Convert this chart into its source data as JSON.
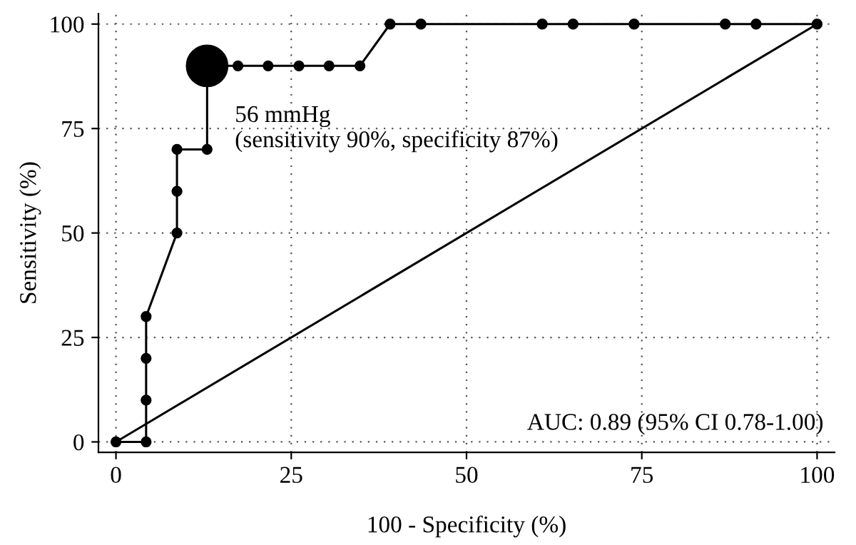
{
  "chart_data": {
    "type": "line",
    "xlabel": "100 - Specificity (%)",
    "ylabel": "Sensitivity (%)",
    "xlim": [
      0,
      100
    ],
    "ylim": [
      0,
      100
    ],
    "xticks": [
      0,
      25,
      50,
      75,
      100
    ],
    "yticks": [
      0,
      25,
      50,
      75,
      100
    ],
    "grid": true,
    "line_style": "solid",
    "marker": "circle",
    "series": [
      {
        "color": "#000000",
        "x": [
          0,
          4.3,
          4.3,
          4.3,
          4.3,
          8.7,
          8.7,
          8.7,
          13.0,
          13.0,
          17.4,
          21.7,
          26.1,
          30.4,
          34.8,
          39.1,
          43.5,
          60.8,
          65.2,
          73.9,
          86.9,
          91.3,
          100
        ],
        "values": [
          0,
          0,
          10,
          20,
          30,
          50,
          60,
          70,
          70,
          90,
          90,
          90,
          90,
          90,
          90,
          100,
          100,
          100,
          100,
          100,
          100,
          100,
          100
        ]
      },
      {
        "color": "#000000",
        "marker": "none",
        "x": [
          0,
          100
        ],
        "values": [
          0,
          100
        ]
      },
      {
        "type": "scatter",
        "color": "#000000",
        "x": [
          13.0
        ],
        "values": [
          90
        ]
      }
    ],
    "annotations": [
      {
        "text": "56 mmHg\n(sensitivity 90%, specificity 87%)",
        "x": 13.0,
        "y": 90
      },
      "AUC: 0.89 (95% CI 0.78-1.00)"
    ]
  }
}
